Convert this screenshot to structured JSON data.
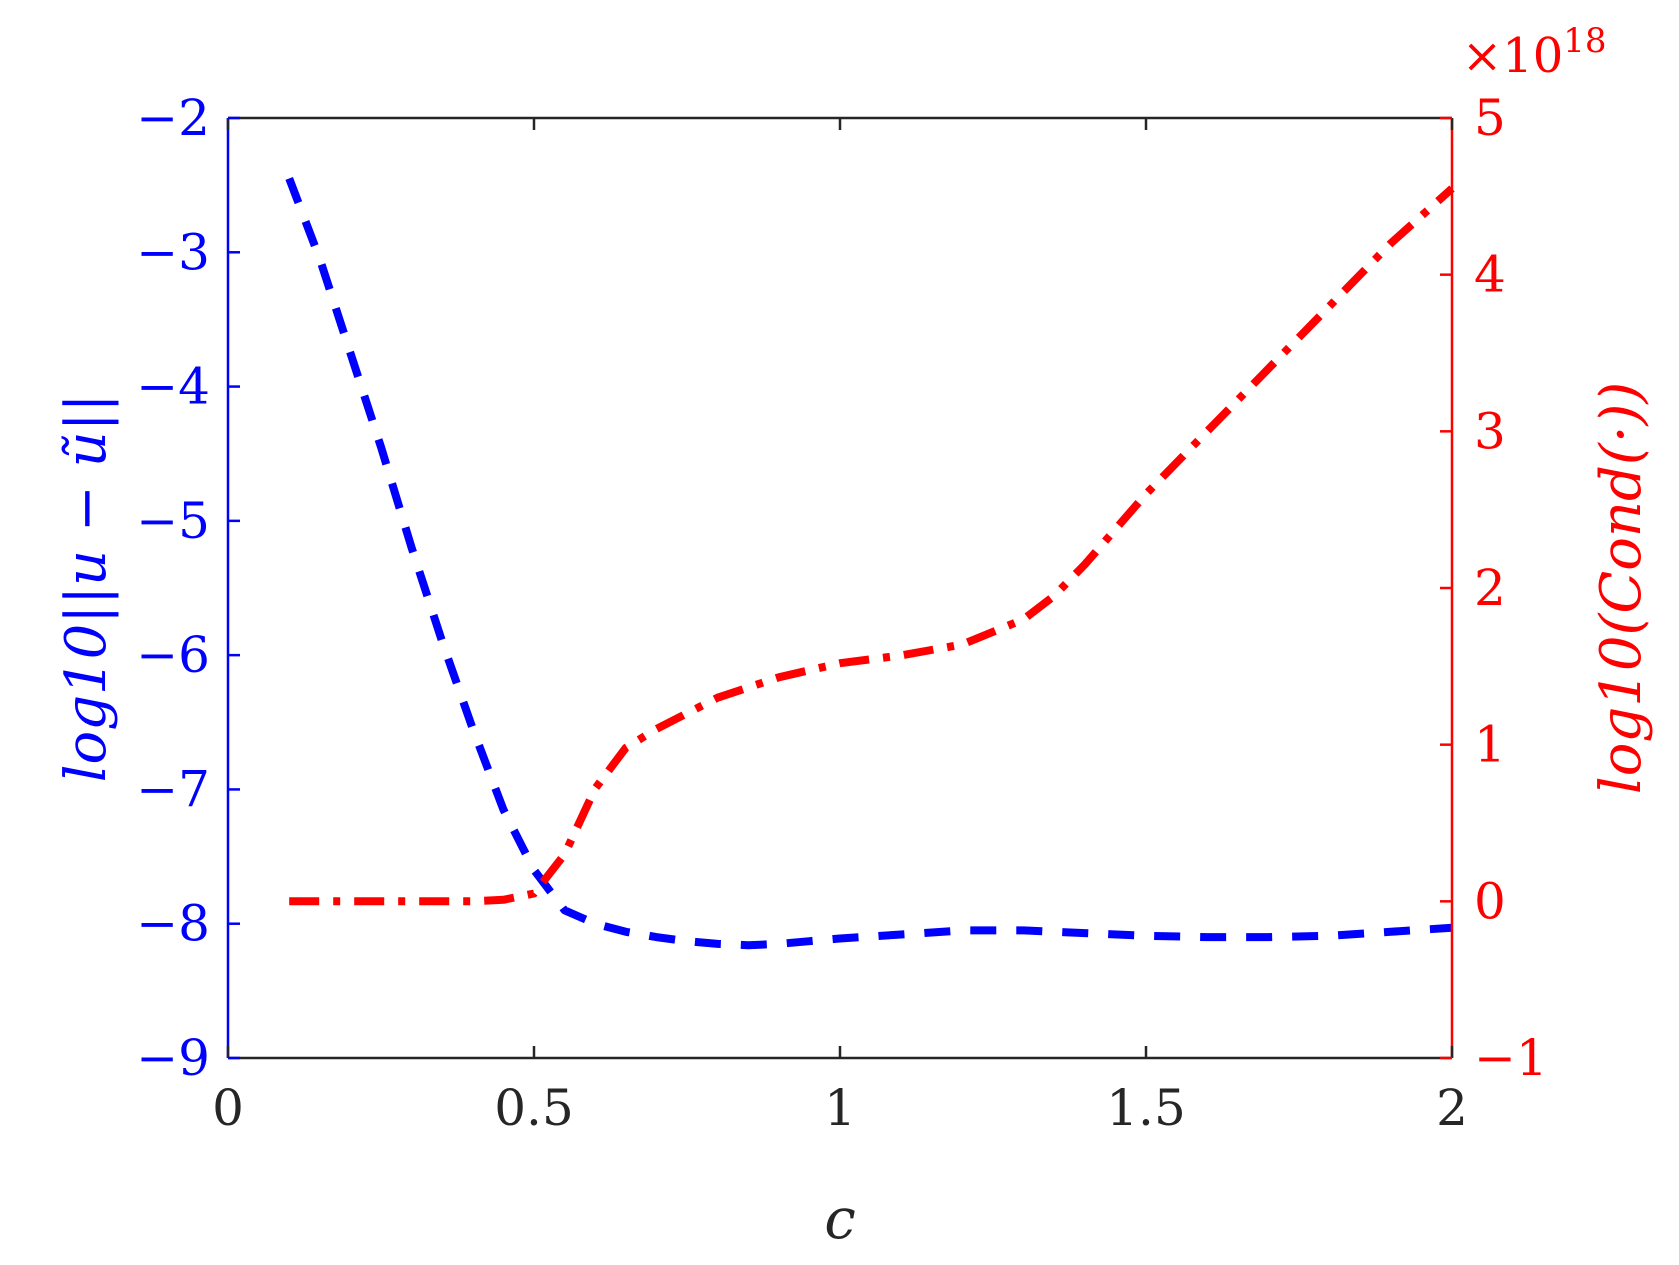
{
  "chart_data": {
    "type": "line",
    "title": "",
    "xlabel": "c",
    "ylabel_left": "log10||u − ũ||",
    "ylabel_right": "log10(Cond(·))",
    "right_axis_multiplier": "×10^18",
    "xlim": [
      0,
      2
    ],
    "ylim_left": [
      -9,
      -2
    ],
    "ylim_right": [
      -1,
      5
    ],
    "grid": false,
    "x_ticks": [
      "0",
      "0.5",
      "1",
      "1.5",
      "2"
    ],
    "y_left_ticks": [
      "−2",
      "−3",
      "−4",
      "−5",
      "−6",
      "−7",
      "−8",
      "−9"
    ],
    "y_right_ticks": [
      "5",
      "4",
      "3",
      "2",
      "1",
      "0",
      "−1"
    ],
    "colors": {
      "left": "#0000ff",
      "right": "#ff0000",
      "axis": "#262626"
    },
    "series": [
      {
        "axis": "left",
        "style": "dashed",
        "color": "#0000ff",
        "x": [
          0.1,
          0.15,
          0.2,
          0.25,
          0.3,
          0.35,
          0.4,
          0.45,
          0.5,
          0.55,
          0.6,
          0.65,
          0.7,
          0.75,
          0.8,
          0.85,
          0.9,
          0.95,
          1.0,
          1.1,
          1.2,
          1.3,
          1.4,
          1.5,
          1.6,
          1.7,
          1.8,
          1.9,
          2.0
        ],
        "y": [
          -2.45,
          -3.05,
          -3.75,
          -4.45,
          -5.2,
          -5.9,
          -6.55,
          -7.15,
          -7.6,
          -7.9,
          -8.0,
          -8.06,
          -8.1,
          -8.13,
          -8.15,
          -8.16,
          -8.15,
          -8.13,
          -8.11,
          -8.08,
          -8.05,
          -8.05,
          -8.07,
          -8.09,
          -8.1,
          -8.1,
          -8.09,
          -8.06,
          -8.03
        ]
      },
      {
        "axis": "right",
        "style": "dash-dot",
        "color": "#ff0000",
        "x": [
          0.1,
          0.2,
          0.3,
          0.4,
          0.45,
          0.5,
          0.55,
          0.6,
          0.65,
          0.7,
          0.75,
          0.8,
          0.9,
          1.0,
          1.1,
          1.2,
          1.3,
          1.35,
          1.4,
          1.5,
          1.6,
          1.7,
          1.8,
          1.9,
          2.0
        ],
        "y": [
          0.0,
          0.0,
          0.0,
          0.0,
          0.01,
          0.05,
          0.3,
          0.72,
          0.98,
          1.1,
          1.2,
          1.3,
          1.43,
          1.52,
          1.57,
          1.64,
          1.8,
          1.95,
          2.15,
          2.6,
          3.0,
          3.4,
          3.8,
          4.2,
          4.55
        ]
      }
    ]
  }
}
